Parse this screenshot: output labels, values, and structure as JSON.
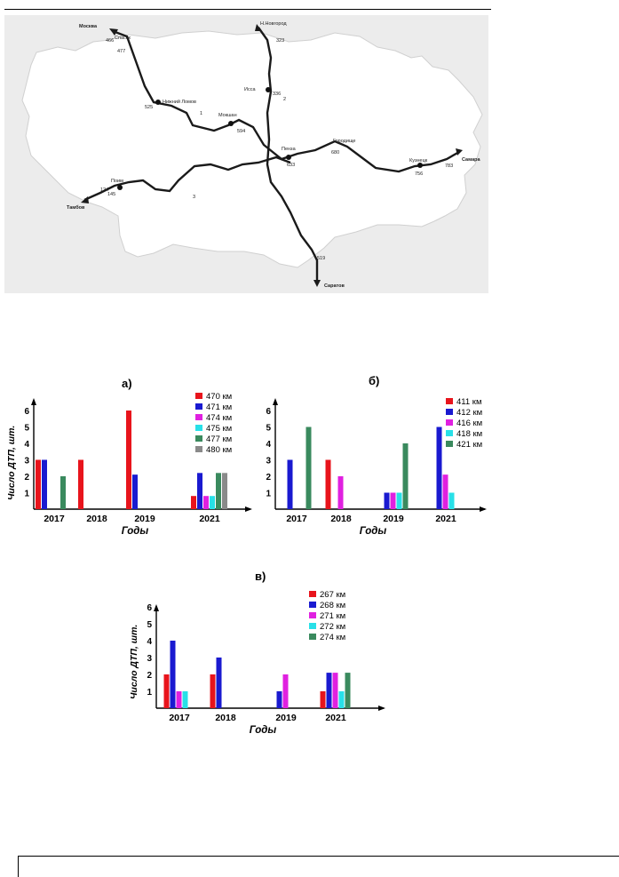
{
  "map": {
    "cities": {
      "moscow": "Москва",
      "spassk": "Спасск",
      "nizhny_lomov": "Нижний Ломов",
      "mokshan": "Мокшан",
      "nnovgorod": "Н.Новгород",
      "issa": "Исса",
      "penza": "Пенза",
      "gorodishche": "Городище",
      "kuznetsk": "Кузнецк",
      "samara": "Самара",
      "poim": "Поим",
      "tambov": "Тамбов",
      "saratov": "Саратов"
    },
    "km": {
      "k466": "466",
      "k477": "477",
      "k525": "525",
      "k594": "594",
      "k323": "323",
      "k336": "336",
      "k633": "633",
      "k680": "680",
      "k756": "756",
      "k783": "783",
      "k124": "124",
      "k145": "145",
      "k519": "519"
    },
    "routes": {
      "r1": "1",
      "r2": "2",
      "r3": "3"
    }
  },
  "chart_data": [
    {
      "type": "bar",
      "title": "а)",
      "xlabel": "Годы",
      "ylabel": "Число ДТП, шт.",
      "ylim": [
        0,
        7
      ],
      "yticks": [
        "1",
        "2",
        "3",
        "4",
        "5",
        "6"
      ],
      "categories": [
        "2017",
        "2018",
        "2019",
        "2021"
      ],
      "legend_position": "top-right",
      "series": [
        {
          "name": "470 км",
          "color": "#e8141c",
          "values": [
            3,
            3,
            6,
            0.8
          ]
        },
        {
          "name": "471 км",
          "color": "#1a1ad0",
          "values": [
            3,
            null,
            2.1,
            2.2
          ]
        },
        {
          "name": "474 км",
          "color": "#e020e0",
          "values": [
            null,
            null,
            null,
            0.8
          ]
        },
        {
          "name": "475 км",
          "color": "#28e0e8",
          "values": [
            null,
            null,
            null,
            0.8
          ]
        },
        {
          "name": "477 км",
          "color": "#3a8a5e",
          "values": [
            2,
            null,
            null,
            2.2
          ]
        },
        {
          "name": "480 км",
          "color": "#8a8a8a",
          "values": [
            null,
            null,
            null,
            2.2
          ]
        }
      ]
    },
    {
      "type": "bar",
      "title": "б)",
      "xlabel": "Годы",
      "ylabel": "Число ДТП, шт.",
      "ylim": [
        0,
        7
      ],
      "yticks": [
        "1",
        "2",
        "3",
        "4",
        "5",
        "6"
      ],
      "categories": [
        "2017",
        "2018",
        "2019",
        "2021"
      ],
      "legend_position": "top-right",
      "series": [
        {
          "name": "411 км",
          "color": "#e8141c",
          "values": [
            null,
            3,
            null,
            null
          ]
        },
        {
          "name": "412 км",
          "color": "#1a1ad0",
          "values": [
            3,
            null,
            1,
            5
          ]
        },
        {
          "name": "416 км",
          "color": "#e020e0",
          "values": [
            null,
            2,
            1,
            2.1
          ]
        },
        {
          "name": "418 км",
          "color": "#28e0e8",
          "values": [
            null,
            null,
            1,
            1
          ]
        },
        {
          "name": "421 км",
          "color": "#3a8a5e",
          "values": [
            5,
            null,
            4,
            null
          ]
        }
      ]
    },
    {
      "type": "bar",
      "title": "в)",
      "xlabel": "Годы",
      "ylabel": "Число ДТП, шт.",
      "ylim": [
        0,
        7
      ],
      "yticks": [
        "1",
        "2",
        "3",
        "4",
        "5",
        "6"
      ],
      "categories": [
        "2017",
        "2018",
        "2019",
        "2021"
      ],
      "legend_position": "top-right",
      "series": [
        {
          "name": "267 км",
          "color": "#e8141c",
          "values": [
            2,
            2,
            null,
            1
          ]
        },
        {
          "name": "268 км",
          "color": "#1a1ad0",
          "values": [
            4,
            3,
            1,
            2.1
          ]
        },
        {
          "name": "271 км",
          "color": "#e020e0",
          "values": [
            1,
            null,
            2,
            2.1
          ]
        },
        {
          "name": "272 км",
          "color": "#28e0e8",
          "values": [
            1,
            null,
            null,
            1
          ]
        },
        {
          "name": "274 км",
          "color": "#3a8a5e",
          "values": [
            null,
            null,
            null,
            2.1
          ]
        }
      ]
    }
  ]
}
